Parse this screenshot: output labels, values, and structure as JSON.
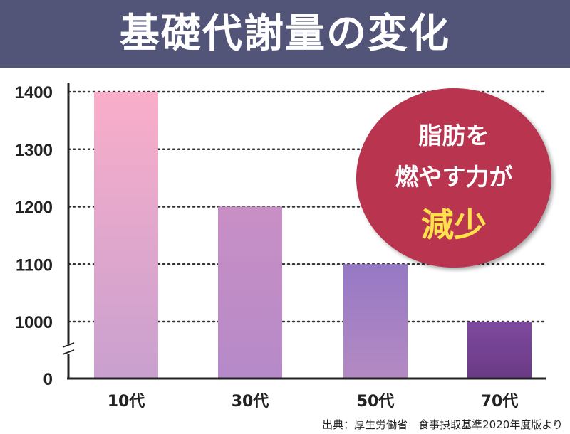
{
  "chart_data": {
    "type": "bar",
    "title": "基礎代謝量の変化",
    "categories": [
      "10代",
      "30代",
      "50代",
      "70代"
    ],
    "values": [
      1400,
      1200,
      1100,
      1000
    ],
    "y_ticks": [
      "0",
      "1000",
      "1100",
      "1200",
      "1300",
      "1400"
    ],
    "y_axis_break": true,
    "grid": "horizontal-dotted",
    "annotation": {
      "line1": "脂肪を",
      "line2": "燃やす力が",
      "line3": "減少"
    },
    "source": "出典：厚生労働省　食事摂取基準2020年度版より",
    "colors": {
      "header": "#525578",
      "badge": "#b8344f",
      "badge_highlight": "#ffe24a"
    }
  }
}
